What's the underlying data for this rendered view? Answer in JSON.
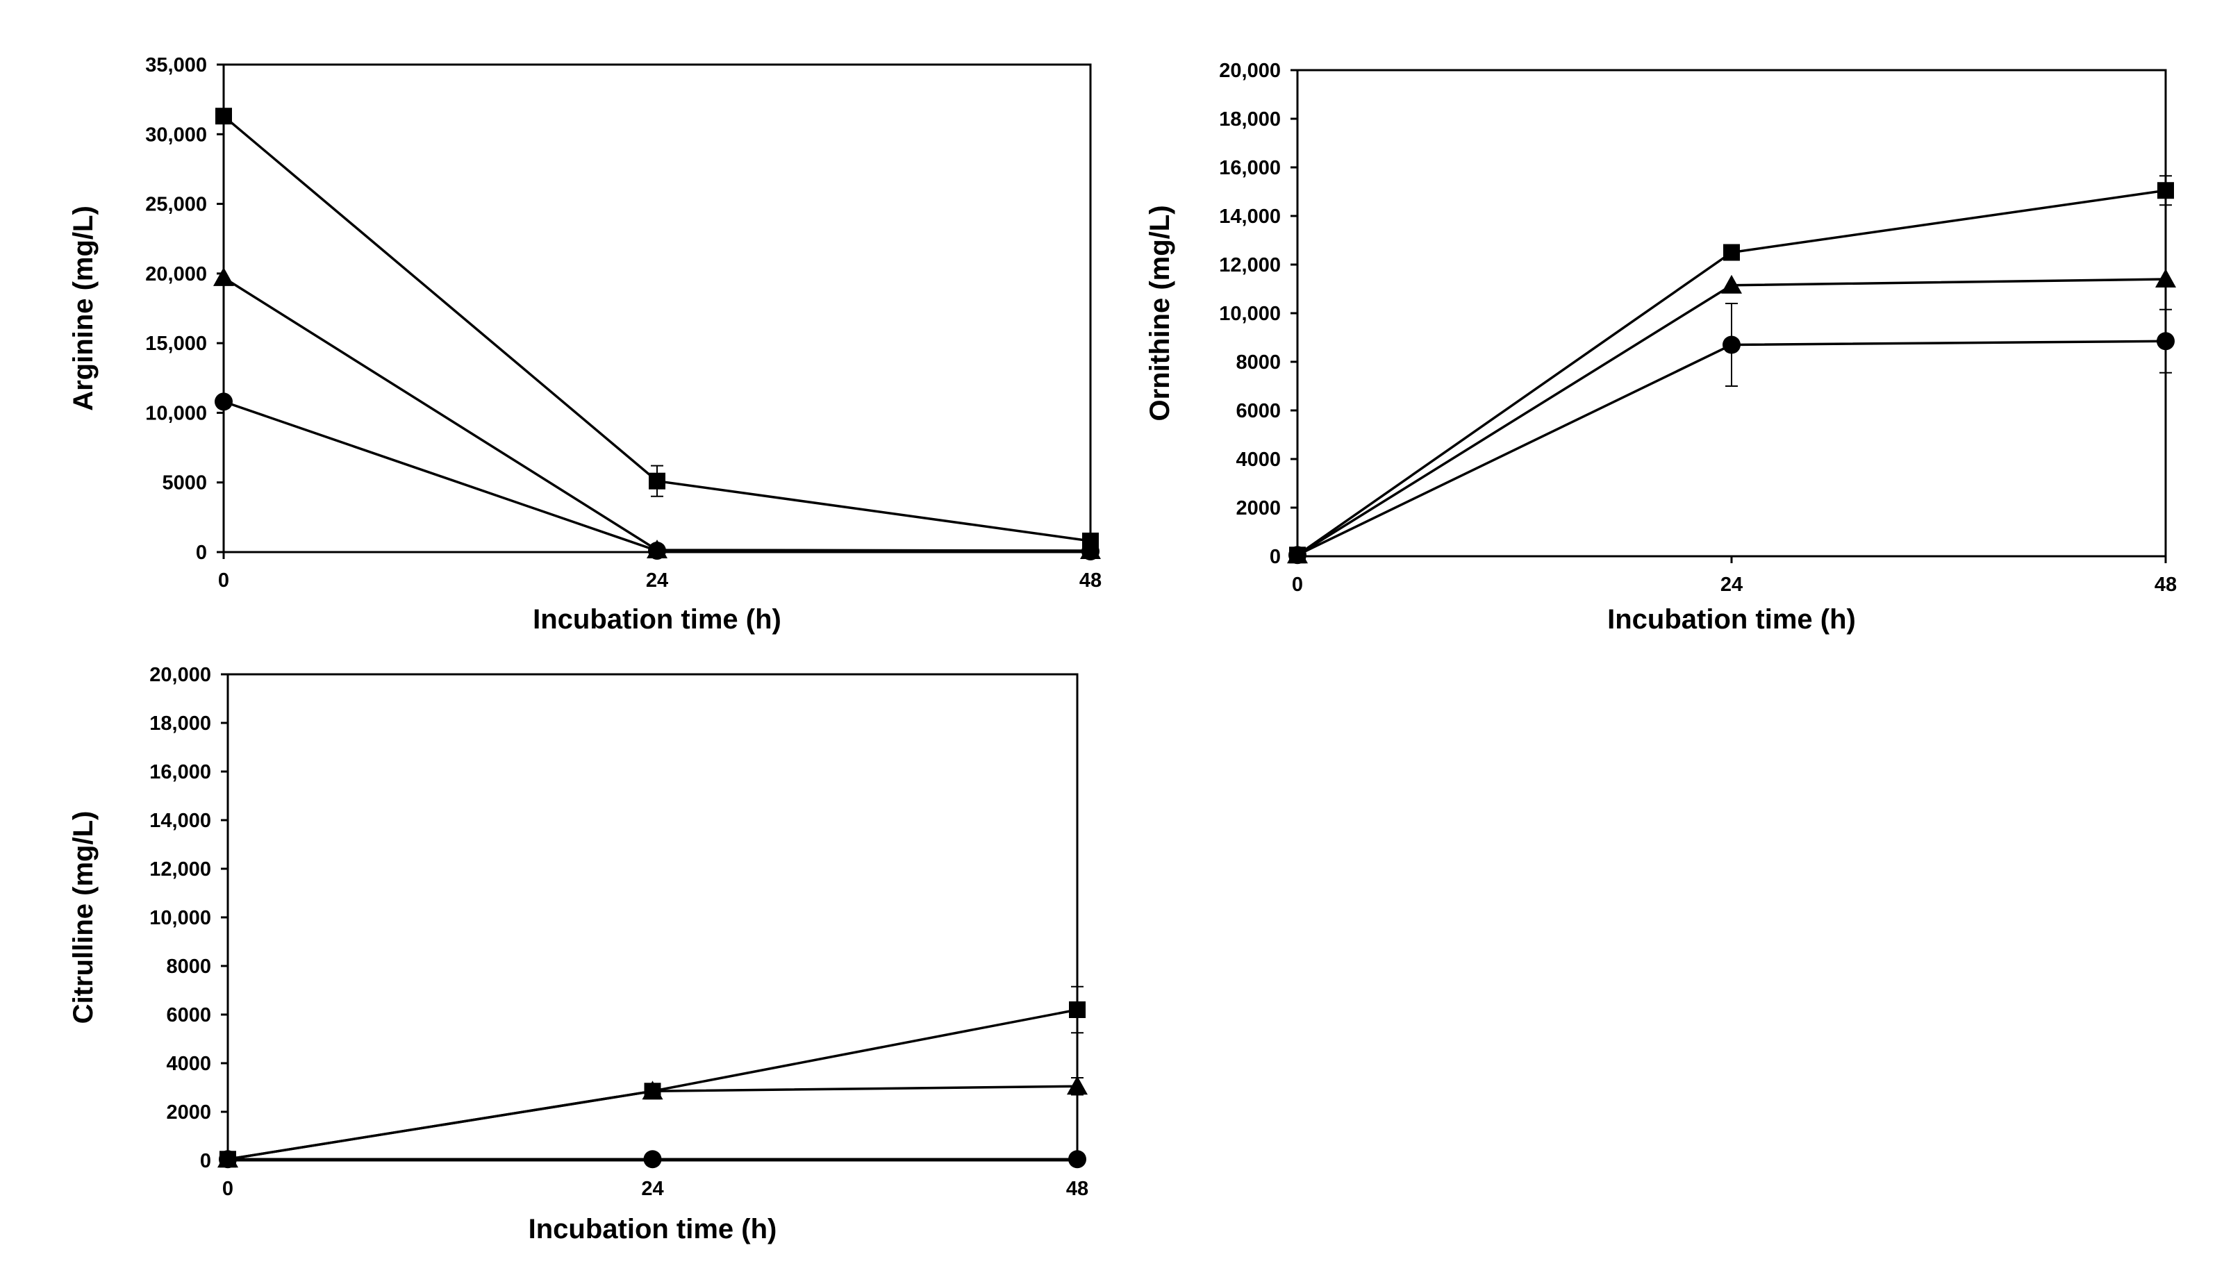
{
  "chart_data": [
    {
      "type": "line",
      "title": "",
      "xlabel": "Incubation time (h)",
      "ylabel": "Arginine (mg/L)",
      "x": [
        0,
        24,
        48
      ],
      "xtick_labels": [
        "0",
        "24",
        "48"
      ],
      "ylim": [
        0,
        35000
      ],
      "ytick_labels": [
        "0",
        "5000",
        "10,000",
        "15,000",
        "20,000",
        "25,000",
        "30,000",
        "35,000"
      ],
      "grid": false,
      "series": [
        {
          "name": "square",
          "marker": "square",
          "values": [
            31300,
            5100,
            800
          ],
          "errors": [
            0,
            1100,
            0
          ]
        },
        {
          "name": "triangle",
          "marker": "triangle",
          "values": [
            19700,
            150,
            100
          ],
          "errors": [
            0,
            0,
            0
          ]
        },
        {
          "name": "circle",
          "marker": "circle",
          "values": [
            10800,
            100,
            50
          ],
          "errors": [
            0,
            0,
            0
          ]
        }
      ]
    },
    {
      "type": "line",
      "title": "",
      "xlabel": "Incubation time (h)",
      "ylabel": "Ornithine (mg/L)",
      "x": [
        0,
        24,
        48
      ],
      "xtick_labels": [
        "0",
        "24",
        "48"
      ],
      "ylim": [
        0,
        20000
      ],
      "ytick_labels": [
        "0",
        "2000",
        "4000",
        "6000",
        "8000",
        "10,000",
        "12,000",
        "14,000",
        "16,000",
        "18,000",
        "20,000"
      ],
      "grid": false,
      "series": [
        {
          "name": "square",
          "marker": "square",
          "values": [
            50,
            12500,
            15050
          ],
          "errors": [
            0,
            0,
            600
          ]
        },
        {
          "name": "triangle",
          "marker": "triangle",
          "values": [
            50,
            11150,
            11400
          ],
          "errors": [
            0,
            0,
            0
          ]
        },
        {
          "name": "circle",
          "marker": "circle",
          "values": [
            50,
            8700,
            8850
          ],
          "errors": [
            0,
            1700,
            1300
          ]
        }
      ]
    },
    {
      "type": "line",
      "title": "",
      "xlabel": "Incubation time (h)",
      "ylabel": "Citrulline (mg/L)",
      "x": [
        0,
        24,
        48
      ],
      "xtick_labels": [
        "0",
        "24",
        "48"
      ],
      "ylim": [
        0,
        20000
      ],
      "ytick_labels": [
        "0",
        "2000",
        "4000",
        "6000",
        "8000",
        "10,000",
        "12,000",
        "14,000",
        "16,000",
        "18,000",
        "20,000"
      ],
      "grid": false,
      "series": [
        {
          "name": "square",
          "marker": "square",
          "values": [
            50,
            2850,
            6200
          ],
          "errors": [
            0,
            0,
            950
          ]
        },
        {
          "name": "triangle",
          "marker": "triangle",
          "values": [
            50,
            2850,
            3050
          ],
          "errors": [
            0,
            0,
            350
          ]
        },
        {
          "name": "circle",
          "marker": "circle",
          "values": [
            50,
            50,
            50
          ],
          "errors": [
            0,
            0,
            0
          ]
        }
      ]
    }
  ]
}
